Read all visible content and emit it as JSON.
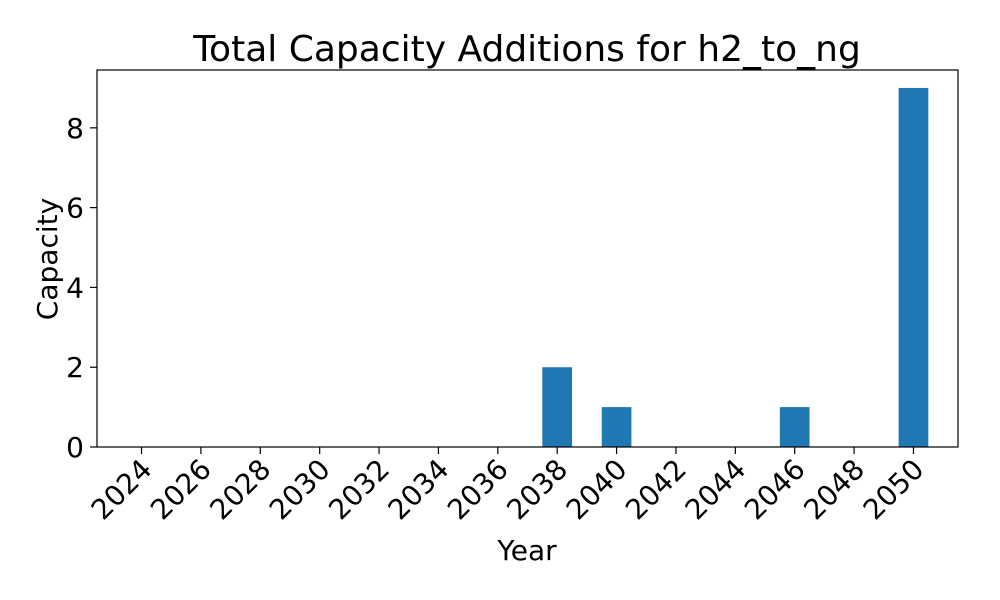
{
  "chart_data": {
    "type": "bar",
    "title": "Total Capacity Additions for h2_to_ng",
    "xlabel": "Year",
    "ylabel": "Capacity",
    "categories": [
      "2024",
      "2026",
      "2028",
      "2030",
      "2032",
      "2034",
      "2036",
      "2038",
      "2040",
      "2042",
      "2044",
      "2046",
      "2048",
      "2050"
    ],
    "values": [
      0,
      0,
      0,
      0,
      0,
      0,
      0,
      2,
      1,
      0,
      0,
      1,
      0,
      9
    ],
    "ylim": [
      0,
      9.45
    ],
    "yticks": [
      "0",
      "2",
      "4",
      "6",
      "8"
    ],
    "grid": false,
    "bar_color": "#1f77b4"
  }
}
